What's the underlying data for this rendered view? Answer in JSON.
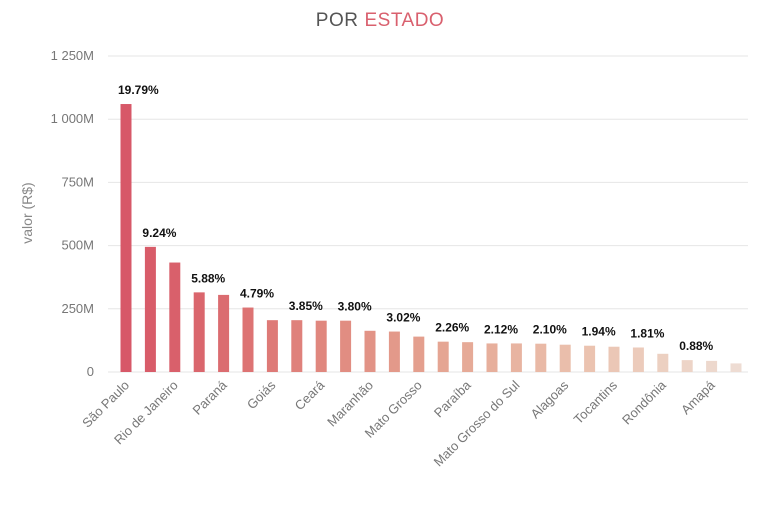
{
  "chart_data": {
    "type": "bar",
    "title_part1": "POR",
    "title_part2": "ESTADO",
    "ylabel": "valor (R$)",
    "ylim": [
      0,
      1250
    ],
    "yticks": [
      {
        "value": 0,
        "label": "0"
      },
      {
        "value": 250,
        "label": "250M"
      },
      {
        "value": 500,
        "label": "500M"
      },
      {
        "value": 750,
        "label": "750M"
      },
      {
        "value": 1000,
        "label": "1 000M"
      },
      {
        "value": 1250,
        "label": "1 250M"
      }
    ],
    "grid": true,
    "bars": [
      {
        "value": 1060,
        "pct": "19.79%",
        "label": "São Paulo",
        "color": "#d75868"
      },
      {
        "value": 495,
        "pct": "9.24%",
        "label": "",
        "color": "#d85c69"
      },
      {
        "value": 433,
        "pct": "",
        "label": "Rio de Janeiro",
        "color": "#d9606b"
      },
      {
        "value": 315,
        "pct": "5.88%",
        "label": "",
        "color": "#da666d"
      },
      {
        "value": 305,
        "pct": "",
        "label": "Paraná",
        "color": "#db6c70"
      },
      {
        "value": 255,
        "pct": "4.79%",
        "label": "",
        "color": "#dd7373"
      },
      {
        "value": 205,
        "pct": "",
        "label": "Goiás",
        "color": "#de7a77"
      },
      {
        "value": 205,
        "pct": "3.85%",
        "label": "",
        "color": "#df817b"
      },
      {
        "value": 203,
        "pct": "",
        "label": "Ceará",
        "color": "#e0877e"
      },
      {
        "value": 203,
        "pct": "3.80%",
        "label": "",
        "color": "#e18d82"
      },
      {
        "value": 163,
        "pct": "",
        "label": "Maranhão",
        "color": "#e29386"
      },
      {
        "value": 160,
        "pct": "3.02%",
        "label": "",
        "color": "#e3998a"
      },
      {
        "value": 140,
        "pct": "",
        "label": "Mato Grosso",
        "color": "#e49f8e"
      },
      {
        "value": 120,
        "pct": "2.26%",
        "label": "",
        "color": "#e5a593"
      },
      {
        "value": 118,
        "pct": "",
        "label": "Paraíba",
        "color": "#e6aa97"
      },
      {
        "value": 113,
        "pct": "2.12%",
        "label": "",
        "color": "#e7af9c"
      },
      {
        "value": 113,
        "pct": "",
        "label": "Mato Grosso do Sul",
        "color": "#e8b4a1"
      },
      {
        "value": 112,
        "pct": "2.10%",
        "label": "",
        "color": "#e9b9a6"
      },
      {
        "value": 108,
        "pct": "",
        "label": "Alagoas",
        "color": "#eabeab"
      },
      {
        "value": 104,
        "pct": "1.94%",
        "label": "",
        "color": "#ebc3b0"
      },
      {
        "value": 100,
        "pct": "",
        "label": "Tocantins",
        "color": "#ebc7b6"
      },
      {
        "value": 97,
        "pct": "1.81%",
        "label": "",
        "color": "#eccbbb"
      },
      {
        "value": 72,
        "pct": "",
        "label": "Rondônia",
        "color": "#ecd0c1"
      },
      {
        "value": 47,
        "pct": "0.88%",
        "label": "",
        "color": "#edd4c7"
      },
      {
        "value": 44,
        "pct": "",
        "label": "Amapá",
        "color": "#edd8cd"
      },
      {
        "value": 34,
        "pct": "",
        "label": "",
        "color": "#eedcd3"
      }
    ]
  }
}
